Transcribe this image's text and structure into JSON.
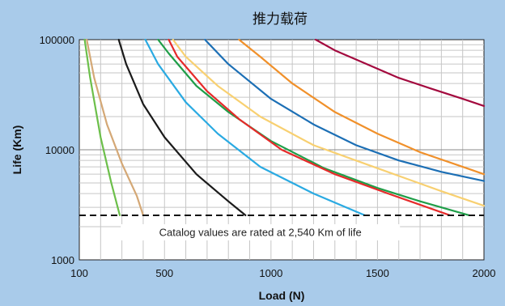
{
  "chart_data": {
    "type": "line",
    "title": "推力载荷",
    "xlabel": "Load (N)",
    "ylabel": "Life (Km)",
    "xlim": [
      100,
      2000
    ],
    "ylim": [
      1000,
      100000
    ],
    "yscale": "log",
    "xticks": [
      100,
      500,
      1000,
      1500,
      2000
    ],
    "xtick_labels": [
      "100",
      "500",
      "1000",
      "1500",
      "2000"
    ],
    "yticks": [
      1000,
      10000,
      100000
    ],
    "ytick_labels": [
      "1000",
      "10000",
      "100000"
    ],
    "grid": true,
    "legend": "none",
    "reference_line": {
      "y": 2540,
      "style": "dashed",
      "color": "#111111"
    },
    "annotation": "Catalog values are rated at 2,540 Km of life",
    "series": [
      {
        "color": "#6cbf4a",
        "x": [
          125,
          150,
          200,
          250,
          290
        ],
        "y": [
          100000,
          46000,
          13000,
          5000,
          2540
        ]
      },
      {
        "color": "#d4a876",
        "x": [
          135,
          170,
          230,
          300,
          370,
          400
        ],
        "y": [
          100000,
          45000,
          17000,
          7500,
          3800,
          2540
        ]
      },
      {
        "color": "#1a1a1a",
        "x": [
          285,
          320,
          400,
          500,
          650,
          800,
          880
        ],
        "y": [
          100000,
          60000,
          26000,
          13000,
          6000,
          3400,
          2540
        ]
      },
      {
        "color": "#2aaae2",
        "x": [
          410,
          470,
          600,
          750,
          950,
          1200,
          1440
        ],
        "y": [
          100000,
          60000,
          27000,
          14000,
          7000,
          4000,
          2540
        ]
      },
      {
        "color": "#1f9e48",
        "x": [
          470,
          520,
          650,
          800,
          1000,
          1250,
          1500,
          1700,
          1930
        ],
        "y": [
          100000,
          75000,
          38000,
          22000,
          12000,
          6800,
          4500,
          3400,
          2540
        ]
      },
      {
        "color": "#e62a2a",
        "x": [
          520,
          560,
          700,
          850,
          1050,
          1300,
          1550,
          1840
        ],
        "y": [
          100000,
          70000,
          34000,
          19000,
          10000,
          6000,
          4000,
          2540
        ]
      },
      {
        "color": "#f8d071",
        "x": [
          540,
          600,
          750,
          950,
          1200,
          1500,
          1800,
          2000
        ],
        "y": [
          100000,
          70000,
          38000,
          20000,
          11000,
          6800,
          4200,
          3100
        ]
      },
      {
        "color": "#1c6fb5",
        "x": [
          690,
          800,
          1000,
          1200,
          1400,
          1600,
          1800,
          2000
        ],
        "y": [
          100000,
          60000,
          29000,
          17000,
          11000,
          8000,
          6300,
          5200
        ]
      },
      {
        "color": "#f0902a",
        "x": [
          850,
          950,
          1100,
          1300,
          1500,
          1700,
          1900,
          2000
        ],
        "y": [
          100000,
          70000,
          40000,
          22000,
          14000,
          9500,
          7000,
          6000
        ]
      },
      {
        "color": "#a3093e",
        "x": [
          1210,
          1300,
          1450,
          1600,
          1750,
          1900,
          2000
        ],
        "y": [
          100000,
          80000,
          60000,
          45000,
          36000,
          29000,
          25000
        ]
      }
    ]
  }
}
